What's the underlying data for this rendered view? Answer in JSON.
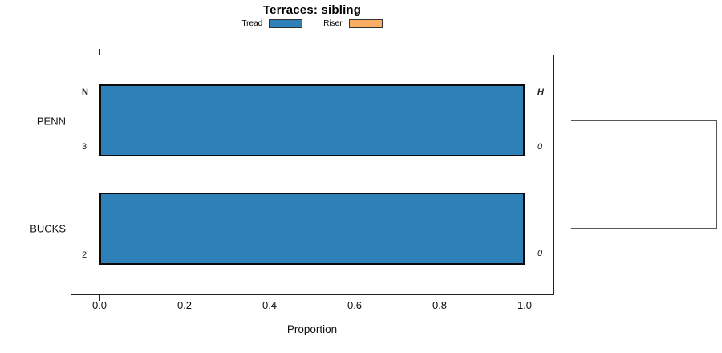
{
  "title": "Terraces: sibling",
  "chart_data": {
    "type": "bar",
    "orientation": "horizontal",
    "title": "Terraces: sibling",
    "xlabel": "Proportion",
    "xlim": [
      0,
      1
    ],
    "x_ticks": [
      0.0,
      0.2,
      0.4,
      0.6,
      0.8,
      1.0
    ],
    "x_tick_labels": [
      "0.0",
      "0.2",
      "0.4",
      "0.6",
      "0.8",
      "1.0"
    ],
    "categories": [
      "PENN",
      "BUCKS"
    ],
    "series": [
      {
        "name": "Tread",
        "color": "#2E80B9",
        "values": [
          1.0,
          1.0
        ]
      },
      {
        "name": "Riser",
        "color": "#FBAD63",
        "values": [
          0.0,
          0.0
        ]
      }
    ],
    "row_annotations": {
      "left_header": "N",
      "right_header": "H",
      "left_values": [
        "3",
        "2"
      ],
      "right_values": [
        "0",
        "0"
      ]
    },
    "legend_position": "top",
    "grid": false,
    "dendrogram": {
      "connects": [
        "PENN",
        "BUCKS"
      ],
      "join_side": "right"
    }
  },
  "colors": {
    "tread": "#2E80B9",
    "riser": "#FBAD63",
    "bar_border": "#0A0A0A",
    "box_border": "#202020",
    "bracket": "#1F1F1F"
  }
}
